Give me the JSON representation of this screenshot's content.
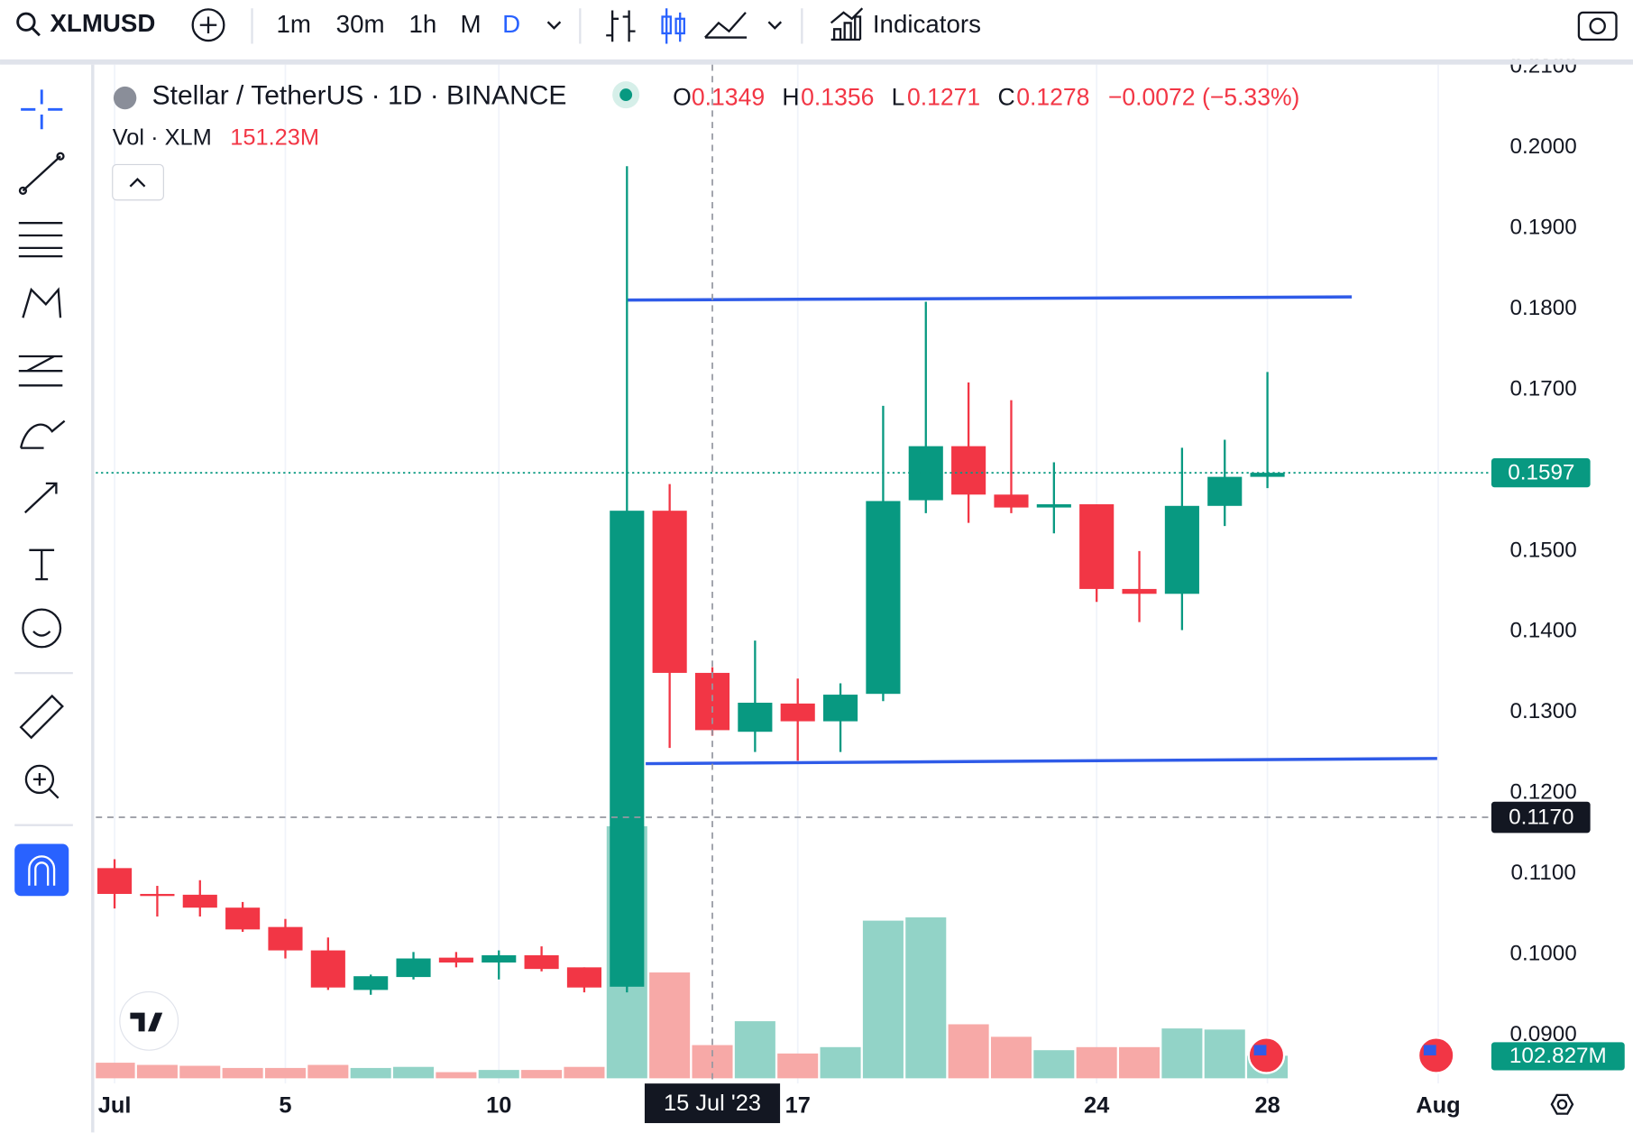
{
  "toolbar": {
    "symbol": "XLMUSD",
    "intervals": [
      "1m",
      "30m",
      "1h",
      "M",
      "D"
    ],
    "indicators": "Indicators"
  },
  "legend": {
    "title": "Stellar / TetherUS · 1D · BINANCE",
    "o_label": "O",
    "o_value": "0.1349",
    "h_label": "H",
    "h_value": "0.1356",
    "l_label": "L",
    "l_value": "0.1271",
    "c_label": "C",
    "c_value": "0.1278",
    "change": "−0.0072 (−5.33%)",
    "vol_label": "Vol · XLM",
    "vol_value": "151.23M"
  },
  "chart_data": {
    "type": "candlestick",
    "x": [
      "2023-07-01",
      "2023-07-02",
      "2023-07-03",
      "2023-07-04",
      "2023-07-05",
      "2023-07-06",
      "2023-07-07",
      "2023-07-08",
      "2023-07-09",
      "2023-07-10",
      "2023-07-11",
      "2023-07-12",
      "2023-07-13",
      "2023-07-14",
      "2023-07-15",
      "2023-07-16",
      "2023-07-17",
      "2023-07-18",
      "2023-07-19",
      "2023-07-20",
      "2023-07-21",
      "2023-07-22",
      "2023-07-23",
      "2023-07-24",
      "2023-07-25",
      "2023-07-26",
      "2023-07-27",
      "2023-07-28"
    ],
    "open": [
      0.1107,
      0.1075,
      0.1074,
      0.1058,
      0.1034,
      0.1005,
      0.0956,
      0.0972,
      0.0996,
      0.099,
      0.0999,
      0.0984,
      0.096,
      0.155,
      0.1349,
      0.1276,
      0.1311,
      0.1289,
      0.1323,
      0.1563,
      0.163,
      0.157,
      0.1554,
      0.1558,
      0.1453,
      0.1447,
      0.1556,
      0.1592
    ],
    "high": [
      0.1118,
      0.1085,
      0.1092,
      0.1065,
      0.1044,
      0.1021,
      0.0975,
      0.1003,
      0.1003,
      0.1005,
      0.101,
      0.0984,
      0.1977,
      0.1583,
      0.1356,
      0.1389,
      0.1342,
      0.1336,
      0.168,
      0.1809,
      0.1709,
      0.1687,
      0.161,
      0.1558,
      0.15,
      0.1628,
      0.1638,
      0.1722
    ],
    "low": [
      0.1057,
      0.1047,
      0.1047,
      0.1028,
      0.0995,
      0.0956,
      0.095,
      0.0969,
      0.0984,
      0.0969,
      0.0979,
      0.0953,
      0.0953,
      0.1256,
      0.1271,
      0.1251,
      0.124,
      0.1251,
      0.1314,
      0.1547,
      0.1535,
      0.1547,
      0.1522,
      0.1437,
      0.1412,
      0.1402,
      0.1531,
      0.1578
    ],
    "close": [
      0.1075,
      0.1073,
      0.1058,
      0.1031,
      0.1005,
      0.0959,
      0.0973,
      0.0995,
      0.099,
      0.0999,
      0.0982,
      0.0959,
      0.155,
      0.1349,
      0.1278,
      0.1312,
      0.1289,
      0.1322,
      0.1562,
      0.163,
      0.157,
      0.1554,
      0.1558,
      0.1453,
      0.1447,
      0.1556,
      0.1592,
      0.1597
    ],
    "volume": [
      71,
      61,
      57,
      47,
      47,
      61,
      47,
      52,
      28,
      38,
      38,
      52,
      1148,
      482,
      151.23,
      260,
      113,
      142,
      718,
      733,
      246,
      189,
      128,
      142,
      142,
      227,
      222,
      102.827
    ],
    "volume_label": "102.827M",
    "up_color": "#089981",
    "down_color": "#f23645",
    "volume_up_color": "#92d3c7",
    "volume_down_color": "#f7a9a7",
    "xlim": [
      "2023-06-30",
      "2023-08-02"
    ],
    "xticks": [
      {
        "value": "2023-07-01",
        "label": "Jul"
      },
      {
        "value": "2023-07-05",
        "label": "5"
      },
      {
        "value": "2023-07-10",
        "label": "10"
      },
      {
        "value": "2023-07-17",
        "label": "17"
      },
      {
        "value": "2023-07-24",
        "label": "24"
      },
      {
        "value": "2023-07-28",
        "label": "28"
      },
      {
        "value": "2023-08-01",
        "label": "Aug"
      }
    ],
    "ylim": [
      0.084,
      0.2103
    ],
    "yticks": [
      {
        "value": 0.09,
        "label": "0.0900"
      },
      {
        "value": 0.1,
        "label": "0.1000"
      },
      {
        "value": 0.11,
        "label": "0.1100"
      },
      {
        "value": 0.12,
        "label": "0.1200"
      },
      {
        "value": 0.13,
        "label": "0.1300"
      },
      {
        "value": 0.14,
        "label": "0.1400"
      },
      {
        "value": 0.15,
        "label": "0.1500"
      },
      {
        "value": 0.16,
        "label": "0.1600"
      },
      {
        "value": 0.17,
        "label": "0.1700"
      },
      {
        "value": 0.18,
        "label": "0.1800"
      },
      {
        "value": 0.19,
        "label": "0.1900"
      },
      {
        "value": 0.2,
        "label": "0.2000"
      },
      {
        "value": 0.21,
        "label": "0.2100"
      }
    ],
    "volume_lim": [
      0,
      4650
    ],
    "grid": true,
    "crosshair": {
      "x": "2023-07-15",
      "price": 0.117,
      "price_label": "0.1170",
      "date_label": "15 Jul '23"
    }
  }
}
